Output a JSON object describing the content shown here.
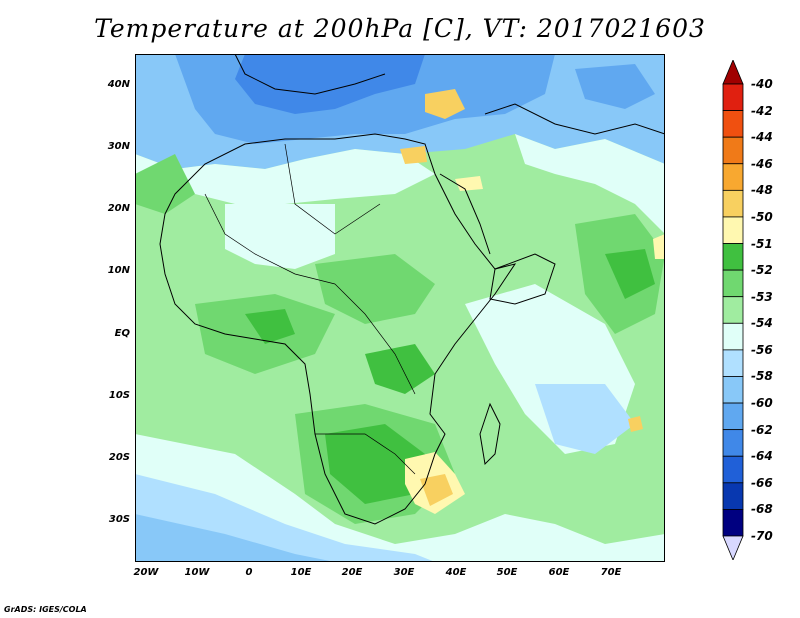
{
  "title": "Temperature at 200hPa [C], VT: 2017021603",
  "credit": "GrADS: IGES/COLA",
  "lat_labels": [
    "40N",
    "30N",
    "20N",
    "10N",
    "EQ",
    "10S",
    "20S",
    "30S"
  ],
  "lon_labels": [
    "20W",
    "10W",
    "0",
    "10E",
    "20E",
    "30E",
    "40E",
    "50E",
    "60E",
    "70E"
  ],
  "colorbar": {
    "labels": [
      "-40",
      "-42",
      "-44",
      "-46",
      "-48",
      "-50",
      "-51",
      "-52",
      "-53",
      "-54",
      "-56",
      "-58",
      "-60",
      "-62",
      "-64",
      "-66",
      "-68",
      "-70"
    ],
    "colors": [
      "#a00000",
      "#e02010",
      "#f05010",
      "#f07a18",
      "#f8a830",
      "#f8d060",
      "#fff8b0",
      "#40c040",
      "#70d870",
      "#a0eca0",
      "#e0fff8",
      "#b0e0ff",
      "#88c8f8",
      "#60a8f0",
      "#4088e8",
      "#2060d8",
      "#0838b0",
      "#000080",
      "#d8d8ff"
    ]
  }
}
